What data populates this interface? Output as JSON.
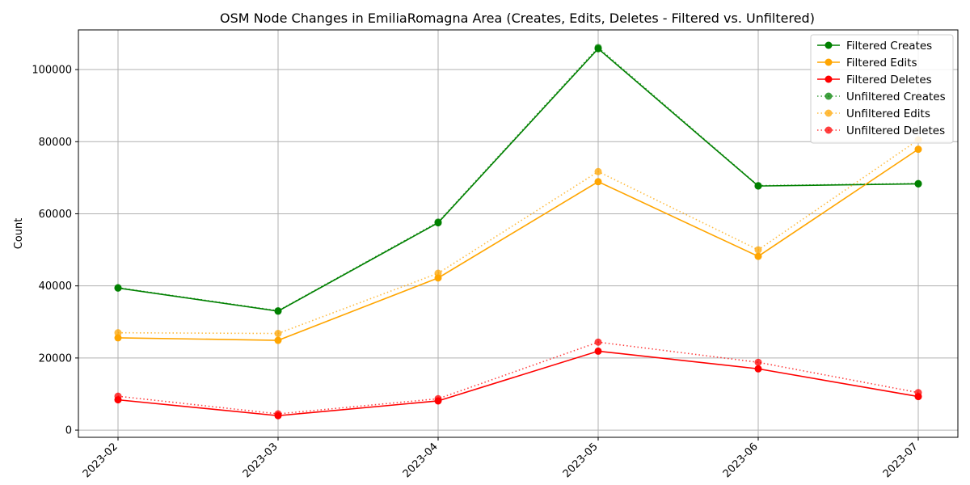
{
  "chart_data": {
    "type": "line",
    "title": "OSM Node Changes in EmiliaRomagna Area (Creates, Edits, Deletes - Filtered vs. Unfiltered)",
    "xlabel": "",
    "ylabel": "Count",
    "categories": [
      "2023-02",
      "2023-03",
      "2023-04",
      "2023-05",
      "2023-06",
      "2023-07"
    ],
    "ylim": [
      -2000,
      111000
    ],
    "yticks": [
      0,
      20000,
      40000,
      60000,
      80000,
      100000
    ],
    "grid": true,
    "legend_position": "top-right",
    "series": [
      {
        "name": "Filtered Creates",
        "values": [
          39400,
          33000,
          57500,
          105800,
          67700,
          68300
        ],
        "color": "#008000",
        "style": "solid"
      },
      {
        "name": "Filtered Edits",
        "values": [
          25600,
          24900,
          42200,
          68900,
          48200,
          77900
        ],
        "color": "#ffa500",
        "style": "solid"
      },
      {
        "name": "Filtered Deletes",
        "values": [
          8400,
          4000,
          8100,
          21900,
          17000,
          9300
        ],
        "color": "#ff0000",
        "style": "solid"
      },
      {
        "name": "Unfiltered Creates",
        "values": [
          39500,
          33100,
          57700,
          106100,
          67800,
          68400
        ],
        "color": "#008000",
        "style": "dotted"
      },
      {
        "name": "Unfiltered Edits",
        "values": [
          27000,
          26800,
          43500,
          71700,
          50000,
          80500
        ],
        "color": "#ffa500",
        "style": "dotted"
      },
      {
        "name": "Unfiltered Deletes",
        "values": [
          9400,
          4500,
          8700,
          24400,
          18800,
          10400
        ],
        "color": "#ff0000",
        "style": "dotted"
      }
    ]
  }
}
